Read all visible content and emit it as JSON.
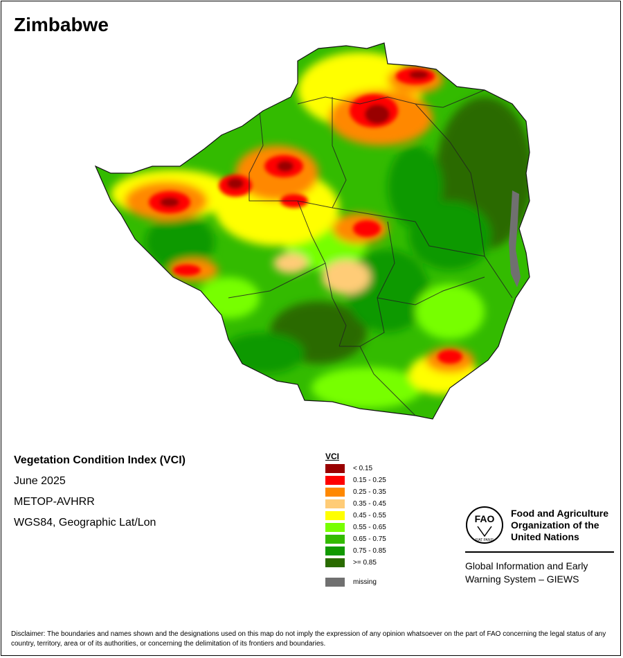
{
  "map": {
    "title": "Zimbabwe",
    "info_lines": [
      "Vegetation Condition Index (VCI)",
      "June 2025",
      "METOP-AVHRR",
      "WGS84, Geographic Lat/Lon"
    ]
  },
  "legend": {
    "title": "VCI",
    "classes": [
      {
        "label": "< 0.15",
        "color": "#990000"
      },
      {
        "label": "0.15 - 0.25",
        "color": "#ff0000"
      },
      {
        "label": "0.25 - 0.35",
        "color": "#ff8800"
      },
      {
        "label": "0.35 - 0.45",
        "color": "#ffcc77"
      },
      {
        "label": "0.45 - 0.55",
        "color": "#ffff00"
      },
      {
        "label": "0.55 - 0.65",
        "color": "#77ff00"
      },
      {
        "label": "0.65 - 0.75",
        "color": "#33bb00"
      },
      {
        "label": "0.75 - 0.85",
        "color": "#119900"
      },
      {
        "label": ">= 0.85",
        "color": "#2a6b00"
      }
    ],
    "missing": {
      "label": "missing",
      "color": "#707070"
    }
  },
  "org": {
    "name": "Food and Agriculture Organization of the United Nations",
    "logo_text": "FAO",
    "logo_lettering": "FIAT PANIS",
    "system": "Global Information and Early Warning System – GIEWS"
  },
  "disclaimer": "Disclaimer: The boundaries and names shown and the designations used on this map do not imply the expression of any opinion whatsoever on the part of FAO concerning the legal status of any country, territory, area or of its authorities, or concerning the delimitation of its frontiers and boundaries."
}
